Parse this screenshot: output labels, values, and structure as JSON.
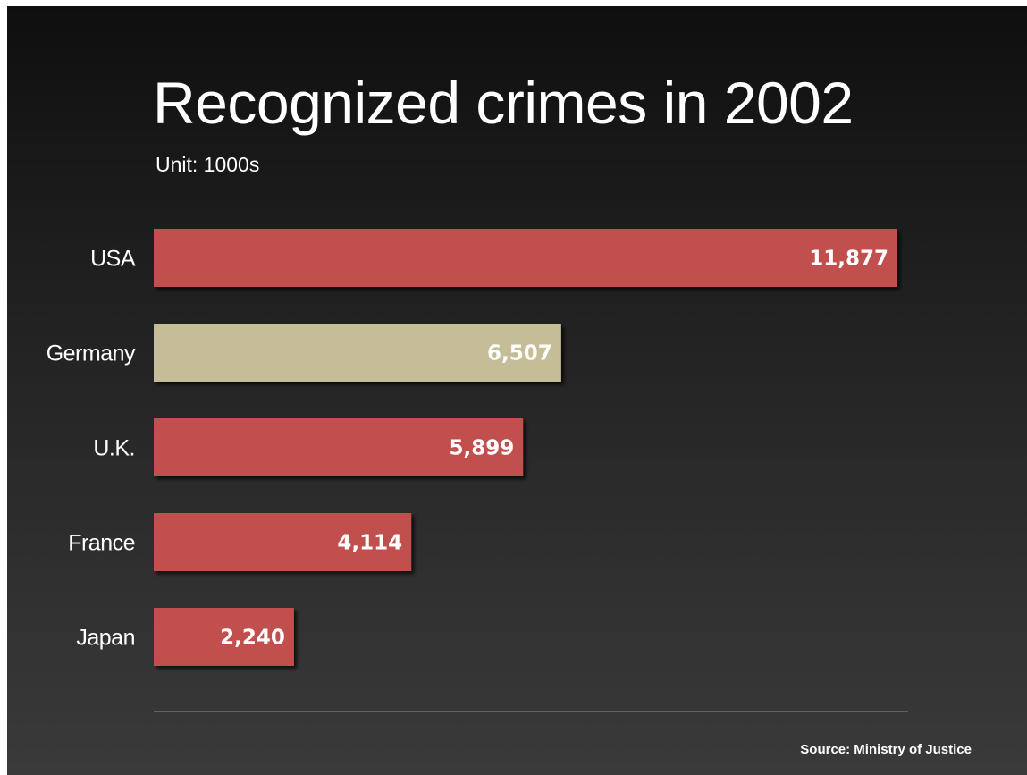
{
  "chart_data": {
    "type": "bar",
    "orientation": "horizontal",
    "title": "Recognized crimes in 2002",
    "subtitle": "Unit: 1000s",
    "categories": [
      "USA",
      "Germany",
      "U.K.",
      "France",
      "Japan"
    ],
    "values": [
      11877,
      6507,
      5899,
      4114,
      2240
    ],
    "value_labels": [
      "11,877",
      "6,507",
      "5,899",
      "4,114",
      "2,240"
    ],
    "highlight_category": "Germany",
    "colors": {
      "bar": "#c0504d",
      "highlight": "#c4bd97",
      "baseline": "#8c8c8c"
    },
    "xlim": [
      0,
      12000
    ],
    "grid": false,
    "source": "Source: Ministry of Justice"
  }
}
